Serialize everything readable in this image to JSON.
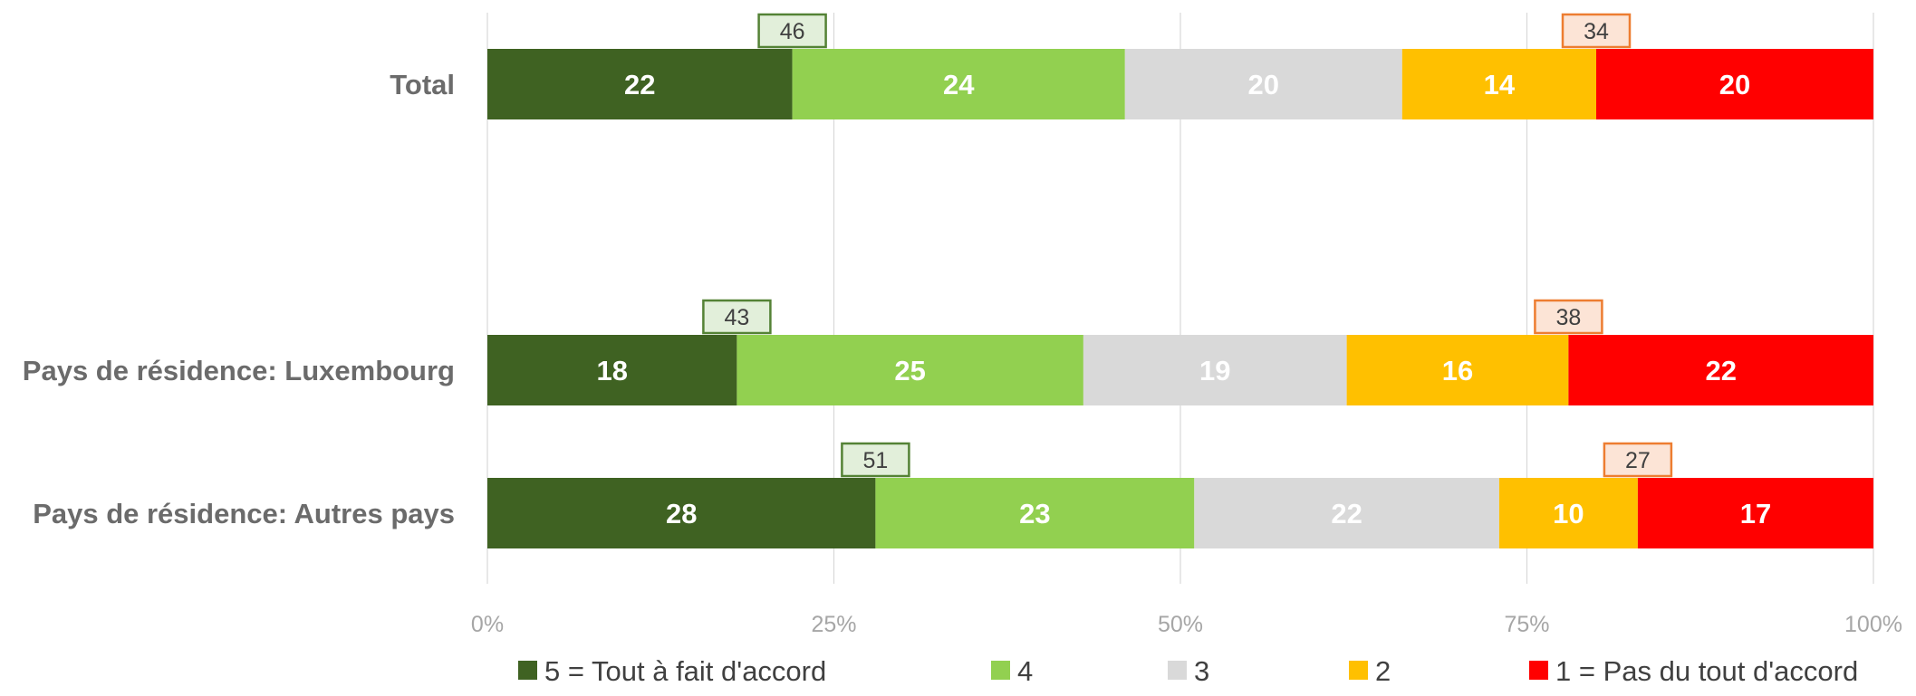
{
  "chart_data": {
    "type": "bar",
    "orientation": "horizontal",
    "stacked": "percent",
    "categories": [
      "Total",
      "Pays de résidence: Luxembourg",
      "Pays de résidence: Autres pays"
    ],
    "series": [
      {
        "name": "5 = Tout à fait d'accord",
        "color": "#3f6222",
        "values": [
          22,
          18,
          28
        ]
      },
      {
        "name": "4",
        "color": "#92d050",
        "values": [
          24,
          25,
          23
        ]
      },
      {
        "name": "3",
        "color": "#d9d9d9",
        "values": [
          20,
          19,
          22
        ]
      },
      {
        "name": "2",
        "color": "#ffc000",
        "values": [
          14,
          16,
          10
        ]
      },
      {
        "name": "1 = Pas du tout d'accord",
        "color": "#ff0000",
        "values": [
          20,
          22,
          17
        ]
      }
    ],
    "agree_totals": [
      46,
      43,
      51
    ],
    "disagree_totals": [
      34,
      38,
      27
    ],
    "agree_box": {
      "fill": "#e2efda",
      "stroke": "#548235"
    },
    "disagree_box": {
      "fill": "#fce4d6",
      "stroke": "#ed7d31"
    },
    "x_ticks": [
      "0%",
      "25%",
      "50%",
      "75%",
      "100%"
    ],
    "xlim": [
      0,
      100
    ],
    "grid": true,
    "legend_position": "bottom"
  }
}
